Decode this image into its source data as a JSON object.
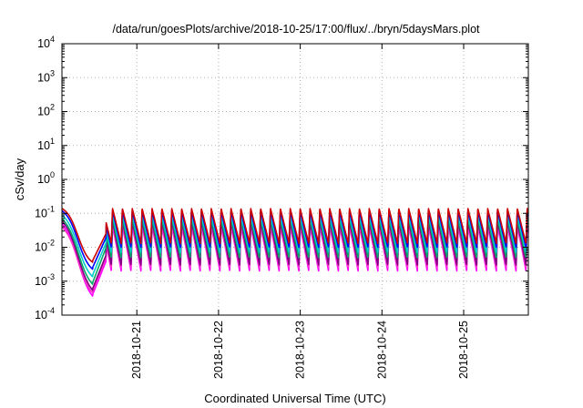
{
  "chart_data": {
    "type": "line",
    "title": "/data/run/goesPlots/archive/2018-10-25/17:00/flux/../bryn/5daysMars.plot",
    "xlabel": "Coordinated Universal Time (UTC)",
    "ylabel": "cSv/day",
    "yscale": "log",
    "ylim": [
      0.0001,
      10000
    ],
    "xlim": [
      "2018-10-20T02:00",
      "2018-10-25T19:00"
    ],
    "y_ticks": [
      {
        "base": "10",
        "exp": "-4",
        "value": 0.0001
      },
      {
        "base": "10",
        "exp": "-3",
        "value": 0.001
      },
      {
        "base": "10",
        "exp": "-2",
        "value": 0.01
      },
      {
        "base": "10",
        "exp": "-1",
        "value": 0.1
      },
      {
        "base": "10",
        "exp": "0",
        "value": 1
      },
      {
        "base": "10",
        "exp": "1",
        "value": 10
      },
      {
        "base": "10",
        "exp": "2",
        "value": 100
      },
      {
        "base": "10",
        "exp": "3",
        "value": 1000
      },
      {
        "base": "10",
        "exp": "4",
        "value": 10000
      }
    ],
    "x_ticks": [
      "2018-10-21",
      "2018-10-22",
      "2018-10-23",
      "2018-10-24",
      "2018-10-25"
    ],
    "grid": true,
    "legend": "none",
    "oscillation_period_hours": 2.9,
    "series": [
      {
        "color": "#ff00ff",
        "peak": 0.05,
        "trough": 0.002,
        "dip_min": 0.0004
      },
      {
        "color": "#ff33cc",
        "peak": 0.04,
        "trough": 0.0025,
        "dip_min": 0.0005
      },
      {
        "color": "#800080",
        "peak": 0.06,
        "trough": 0.003,
        "dip_min": 0.0006
      },
      {
        "color": "#00aa66",
        "peak": 0.07,
        "trough": 0.005,
        "dip_min": 0.0009
      },
      {
        "color": "#00cccc",
        "peak": 0.09,
        "trough": 0.007,
        "dip_min": 0.0015
      },
      {
        "color": "#0000ff",
        "peak": 0.12,
        "trough": 0.01,
        "dip_min": 0.0025
      },
      {
        "color": "#cc0000",
        "peak": 0.14,
        "trough": 0.013,
        "dip_min": 0.004
      }
    ]
  }
}
